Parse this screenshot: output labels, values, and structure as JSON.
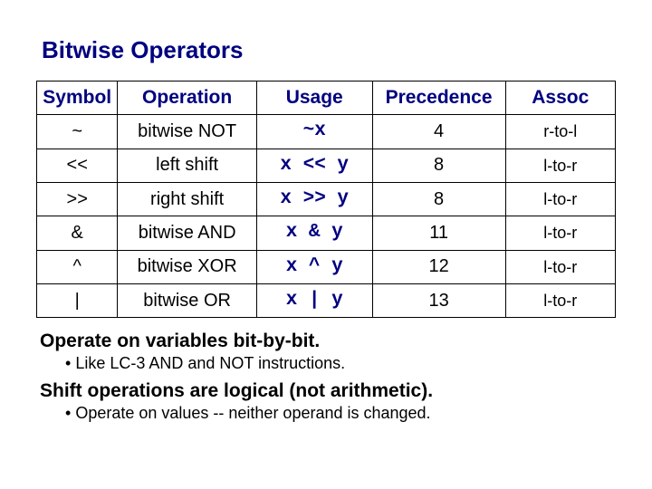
{
  "title": "Bitwise Operators",
  "headers": {
    "symbol": "Symbol",
    "operation": "Operation",
    "usage": "Usage",
    "precedence": "Precedence",
    "assoc": "Assoc"
  },
  "rows": [
    {
      "symbol": "~",
      "operation": "bitwise NOT",
      "usage": "~x",
      "precedence": "4",
      "assoc": "r-to-l"
    },
    {
      "symbol": "<<",
      "operation": "left shift",
      "usage": "x << y",
      "precedence": "8",
      "assoc": "l-to-r"
    },
    {
      "symbol": ">>",
      "operation": "right shift",
      "usage": "x >> y",
      "precedence": "8",
      "assoc": "l-to-r"
    },
    {
      "symbol": "&",
      "operation": "bitwise AND",
      "usage": "x & y",
      "precedence": "11",
      "assoc": "l-to-r"
    },
    {
      "symbol": "^",
      "operation": "bitwise XOR",
      "usage": "x ^ y",
      "precedence": "12",
      "assoc": "l-to-r"
    },
    {
      "symbol": "|",
      "operation": "bitwise OR",
      "usage": "x | y",
      "precedence": "13",
      "assoc": "l-to-r"
    }
  ],
  "notes": {
    "line1": "Operate on variables bit-by-bit.",
    "bullet1": "Like LC-3 AND and NOT instructions.",
    "line2": "Shift operations are logical (not arithmetic).",
    "bullet2": "Operate on values -- neither operand is changed."
  },
  "styling": {
    "title_color": "#000080",
    "header_color": "#000080",
    "usage_color": "#000080",
    "border_color": "#000000",
    "background": "#ffffff",
    "title_fontsize": 26,
    "header_fontsize": 21,
    "cell_fontsize": 20,
    "assoc_fontsize": 18,
    "usage_font": "Courier New",
    "body_font": "Arial",
    "col_widths_pct": [
      14,
      24,
      20,
      23,
      19
    ]
  }
}
